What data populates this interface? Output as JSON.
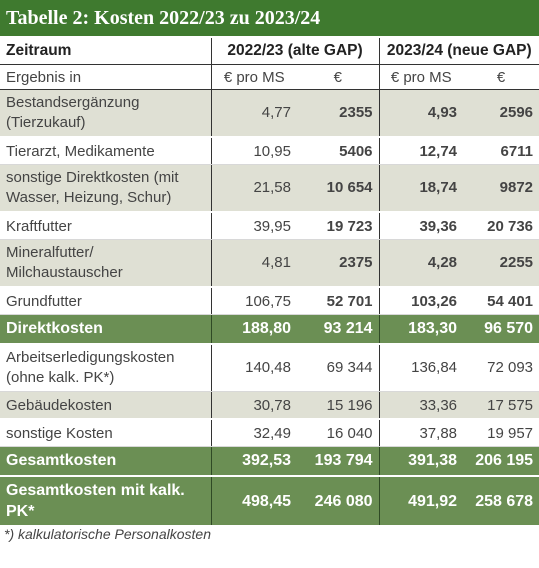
{
  "title": "Tabelle 2: Kosten 2022/23 zu 2023/24",
  "header": {
    "period_label": "Zeitraum",
    "col_2022": "2022/23 (alte GAP)",
    "col_2023": "2023/24 (neue GAP)"
  },
  "units": {
    "label": "Ergebnis in",
    "u1": "€ pro MS",
    "u2": "€",
    "u3": "€ pro MS",
    "u4": "€"
  },
  "rows": [
    {
      "label": "Bestandsergänzung (Tierzukauf)",
      "a": "4,77",
      "b": "2355",
      "c": "4,93",
      "d": "2596"
    },
    {
      "label": "Tierarzt, Medikamente",
      "a": "10,95",
      "b": "5406",
      "c": "12,74",
      "d": "6711"
    },
    {
      "label": "sonstige Direktkosten (mit Wasser, Heizung, Schur)",
      "a": "21,58",
      "b": "10 654",
      "c": "18,74",
      "d": "9872"
    },
    {
      "label": "Kraftfutter",
      "a": "39,95",
      "b": "19 723",
      "c": "39,36",
      "d": "20 736"
    },
    {
      "label": "Mineralfutter/ Milchaustauscher",
      "a": "4,81",
      "b": "2375",
      "c": "4,28",
      "d": "2255"
    },
    {
      "label": "Grundfutter",
      "a": "106,75",
      "b": "52 701",
      "c": "103,26",
      "d": "54 401"
    },
    {
      "label": "Direktkosten",
      "a": "188,80",
      "b": "93 214",
      "c": "183,30",
      "d": "96 570"
    },
    {
      "label": "Arbeitserledigungskosten (ohne kalk. PK*)",
      "a": "140,48",
      "b": "69 344",
      "c": "136,84",
      "d": "72 093"
    },
    {
      "label": "Gebäudekosten",
      "a": "30,78",
      "b": "15 196",
      "c": "33,36",
      "d": "17 575"
    },
    {
      "label": "sonstige Kosten",
      "a": "32,49",
      "b": "16 040",
      "c": "37,88",
      "d": "19 957"
    },
    {
      "label": "Gesamtkosten",
      "a": "392,53",
      "b": "193 794",
      "c": "391,38",
      "d": "206 195"
    },
    {
      "label": "Gesamtkosten mit kalk. PK*",
      "a": "498,45",
      "b": "246 080",
      "c": "491,92",
      "d": "258 678"
    }
  ],
  "footnote": "*) kalkulatorische Personalkosten",
  "colors": {
    "title_bg": "#3f7a2f",
    "sum_bg": "#6b8f54",
    "shade_bg": "#dfe0d4"
  }
}
